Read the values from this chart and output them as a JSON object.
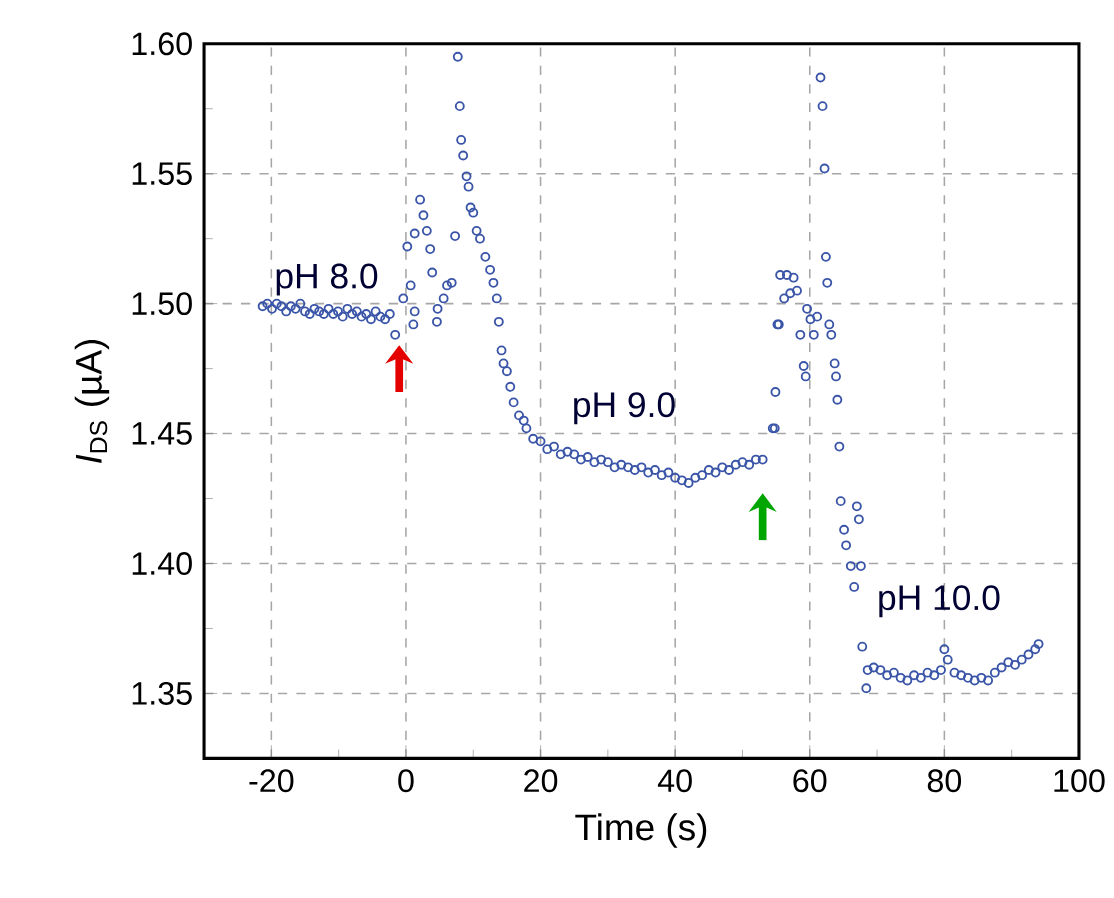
{
  "chart_data": {
    "type": "scatter",
    "xlabel": "Time (s)",
    "ylabel": "*I*$_{DS}$ (µA)",
    "xlim": [
      -30,
      100
    ],
    "ylim": [
      1.325,
      1.6
    ],
    "xticks": [
      -20,
      0,
      20,
      40,
      60,
      80,
      100
    ],
    "yticks": [
      1.35,
      {
        "value": 1.4,
        "label": "1.40"
      },
      1.45,
      {
        "value": 1.5,
        "label": "1.50"
      },
      1.55,
      {
        "value": 1.6,
        "label": "1.60"
      }
    ],
    "grid": true,
    "marker": "circle",
    "annotations": [
      "pH 8.0",
      "pH 9.0",
      "pH 10.0"
    ],
    "series": [
      {
        "color": "#3a55a8",
        "x": [
          -21.3,
          -20.6,
          -19.9,
          -19.2,
          -18.5,
          -17.8,
          -17.1,
          -16.4,
          -15.7,
          -15.0,
          -14.3,
          -13.6,
          -12.9,
          -12.2,
          -11.5,
          -10.8,
          -10.1,
          -9.4,
          -8.7,
          -8.0,
          -7.3,
          -6.6,
          -5.9,
          -5.2,
          -4.5,
          -3.8,
          -3.1,
          -2.4,
          -1.6,
          -0.4,
          0.2,
          0.7,
          1.1,
          1.3,
          1.3,
          2.1,
          2.6,
          3.1,
          3.6,
          3.9,
          4.6,
          4.7,
          5.6,
          6.1,
          6.8,
          7.3,
          7.7,
          8.0,
          8.2,
          8.5,
          9.0,
          9.3,
          9.6,
          10.0,
          10.5,
          11.0,
          11.8,
          12.5,
          13.0,
          13.5,
          13.8,
          14.2,
          14.5,
          15.0,
          15.5,
          16.0,
          16.8,
          17.5,
          17.9,
          18.9,
          20.0,
          21.0,
          22.0,
          23.0,
          24.0,
          25.0,
          26.0,
          27.0,
          28.0,
          29.0,
          30.0,
          31.0,
          32.0,
          33.0,
          34.0,
          35.0,
          36.0,
          37.0,
          38.0,
          39.0,
          40.0,
          41.0,
          42.0,
          43.0,
          44.0,
          45.0,
          46.0,
          47.0,
          48.0,
          49.0,
          50.0,
          51.0,
          52.0,
          53.0,
          54.5,
          54.8,
          54.9,
          55.2,
          55.4,
          55.6,
          56.2,
          56.6,
          57.1,
          57.6,
          58.1,
          58.6,
          59.1,
          59.4,
          59.6,
          60.1,
          60.6,
          61.1,
          61.6,
          61.9,
          62.2,
          62.4,
          62.6,
          62.9,
          63.2,
          63.7,
          63.9,
          64.1,
          64.4,
          64.6,
          65.1,
          65.4,
          66.1,
          66.6,
          67.0,
          67.3,
          67.6,
          67.8,
          68.4,
          68.6,
          69.5,
          70.5,
          71.5,
          72.5,
          73.5,
          74.5,
          75.5,
          76.5,
          77.5,
          78.5,
          79.5,
          80.0,
          80.5,
          81.5,
          82.5,
          83.5,
          84.5,
          85.5,
          86.5,
          87.5,
          88.5,
          89.5,
          90.5,
          91.5,
          92.5,
          93.5,
          94.0
        ],
        "values": [
          1.499,
          1.5,
          1.498,
          1.5,
          1.499,
          1.497,
          1.499,
          1.498,
          1.5,
          1.497,
          1.496,
          1.498,
          1.497,
          1.496,
          1.498,
          1.496,
          1.497,
          1.495,
          1.498,
          1.496,
          1.497,
          1.495,
          1.496,
          1.494,
          1.497,
          1.495,
          1.494,
          1.496,
          1.488,
          1.502,
          1.522,
          1.507,
          1.492,
          1.497,
          1.527,
          1.54,
          1.534,
          1.528,
          1.521,
          1.512,
          1.493,
          1.498,
          1.502,
          1.507,
          1.508,
          1.526,
          1.595,
          1.576,
          1.563,
          1.557,
          1.549,
          1.545,
          1.537,
          1.535,
          1.528,
          1.525,
          1.518,
          1.513,
          1.508,
          1.502,
          1.493,
          1.482,
          1.477,
          1.474,
          1.468,
          1.462,
          1.457,
          1.455,
          1.452,
          1.448,
          1.447,
          1.444,
          1.445,
          1.442,
          1.443,
          1.442,
          1.44,
          1.441,
          1.439,
          1.44,
          1.439,
          1.437,
          1.438,
          1.437,
          1.436,
          1.437,
          1.435,
          1.436,
          1.434,
          1.435,
          1.433,
          1.432,
          1.431,
          1.433,
          1.434,
          1.436,
          1.435,
          1.437,
          1.436,
          1.438,
          1.439,
          1.438,
          1.44,
          1.44,
          1.452,
          1.452,
          1.466,
          1.492,
          1.492,
          1.511,
          1.502,
          1.511,
          1.504,
          1.51,
          1.505,
          1.488,
          1.476,
          1.472,
          1.498,
          1.494,
          1.488,
          1.495,
          1.587,
          1.576,
          1.552,
          1.518,
          1.508,
          1.492,
          1.488,
          1.477,
          1.472,
          1.463,
          1.445,
          1.424,
          1.413,
          1.407,
          1.399,
          1.391,
          1.422,
          1.417,
          1.399,
          1.368,
          1.352,
          1.359,
          1.36,
          1.359,
          1.357,
          1.358,
          1.356,
          1.355,
          1.357,
          1.356,
          1.358,
          1.357,
          1.359,
          1.367,
          1.363,
          1.358,
          1.357,
          1.356,
          1.355,
          1.356,
          1.355,
          1.358,
          1.36,
          1.362,
          1.361,
          1.363,
          1.365,
          1.367,
          1.369
        ]
      }
    ]
  }
}
